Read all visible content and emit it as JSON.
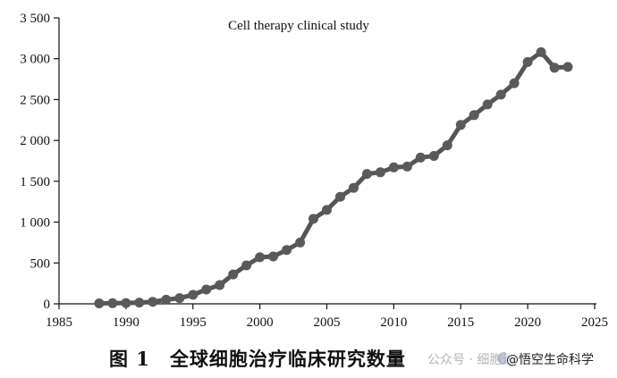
{
  "chart_data": {
    "type": "line",
    "title": "Cell therapy clinical study",
    "xlabel": "",
    "ylabel": "",
    "xlim": [
      1985,
      2025
    ],
    "ylim": [
      0,
      3500
    ],
    "xticks": [
      1985,
      1990,
      1995,
      2000,
      2005,
      2010,
      2015,
      2020,
      2025
    ],
    "xtick_labels": [
      "1985",
      "1990",
      "1995",
      "2000",
      "2005",
      "2010",
      "2015",
      "2020",
      "2025"
    ],
    "yticks": [
      0,
      500,
      1000,
      1500,
      2000,
      2500,
      3000,
      3500
    ],
    "ytick_labels": [
      "0",
      "500",
      "1 000",
      "1 500",
      "2 000",
      "2 500",
      "3 000",
      "3 500"
    ],
    "grid": false,
    "colors": {
      "line": "#555555",
      "marker": "#5a5a5a",
      "axis": "#111111"
    },
    "series": [
      {
        "x": [
          1988,
          1989,
          1990,
          1991,
          1992,
          1993,
          1994,
          1995,
          1996,
          1997,
          1998,
          1999,
          2000,
          2001,
          2002,
          2003,
          2004,
          2005,
          2006,
          2007,
          2008,
          2009,
          2010,
          2011,
          2012,
          2013,
          2014,
          2015,
          2016,
          2017,
          2018,
          2019,
          2020,
          2021,
          2022,
          2023
        ],
        "values": [
          5,
          8,
          10,
          15,
          25,
          50,
          70,
          110,
          175,
          230,
          360,
          470,
          570,
          580,
          660,
          750,
          1040,
          1150,
          1310,
          1420,
          1590,
          1610,
          1670,
          1680,
          1790,
          1810,
          1940,
          2190,
          2310,
          2440,
          2560,
          2700,
          2960,
          3080,
          2890,
          2900
        ]
      }
    ]
  },
  "caption": {
    "figure_number": "图 1",
    "text": "全球细胞治疗临床研究数量"
  },
  "watermark": {
    "text": "公众号 · 细胞治疗·科普",
    "brand": "@悟空生命科学"
  }
}
